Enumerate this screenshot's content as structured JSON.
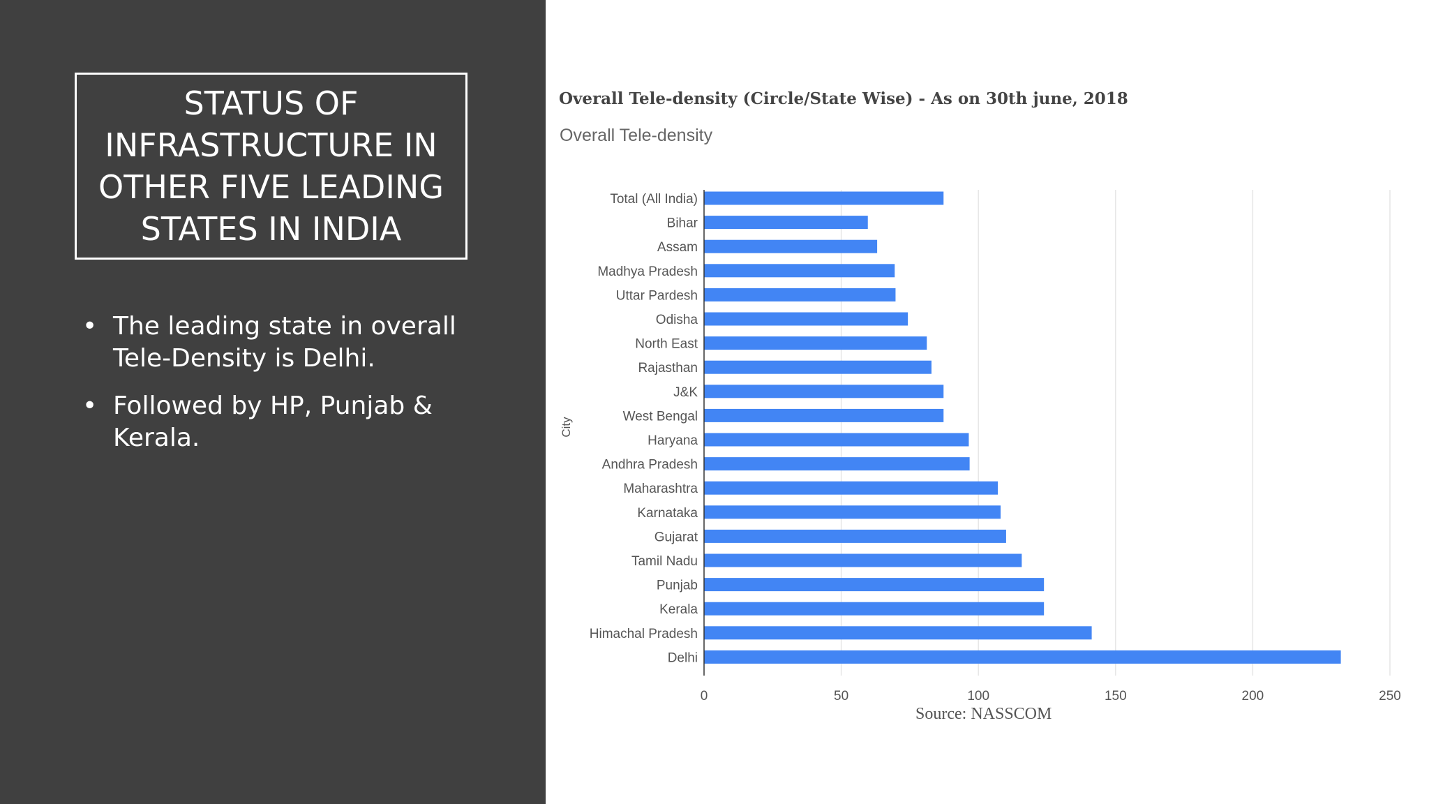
{
  "slide": {
    "title": "STATUS OF INFRASTRUCTURE IN OTHER FIVE LEADING STATES IN INDIA",
    "bullets": [
      "The leading state in overall Tele-Density is Delhi.",
      "Followed by HP, Punjab & Kerala."
    ],
    "bullet_marker": "•"
  },
  "chart_heading": "Overall Tele-density (Circle/State Wise) - As on 30th june, 2018",
  "source_note": "Source: NASSCOM",
  "colors": {
    "panel_bg": "#404040",
    "bar": "#4285f4",
    "grid": "#e6e6e6",
    "axis": "#333333",
    "label": "#555555"
  },
  "chart_data": {
    "type": "bar",
    "orientation": "horizontal",
    "title": "Overall Tele-density",
    "xlabel": "",
    "ylabel": "City",
    "xlim": [
      0,
      250
    ],
    "xticks": [
      0,
      50,
      100,
      150,
      200,
      250
    ],
    "grid": true,
    "legend": "none",
    "categories": [
      "Total (All India)",
      "Bihar",
      "Assam",
      "Madhya Pradesh",
      "Uttar Pardesh",
      "Odisha",
      "North East",
      "Rajasthan",
      "J&K",
      "West Bengal",
      "Haryana",
      "Andhra Pradesh",
      "Maharashtra",
      "Karnataka",
      "Gujarat",
      "Tamil Nadu",
      "Punjab",
      "Kerala",
      "Himachal Pradesh",
      "Delhi"
    ],
    "values": [
      87.3,
      59.7,
      63.1,
      69.5,
      69.8,
      74.3,
      81.2,
      82.9,
      87.3,
      87.3,
      96.5,
      96.8,
      107.1,
      108.1,
      110.1,
      115.8,
      123.9,
      123.9,
      141.3,
      232.1
    ]
  }
}
